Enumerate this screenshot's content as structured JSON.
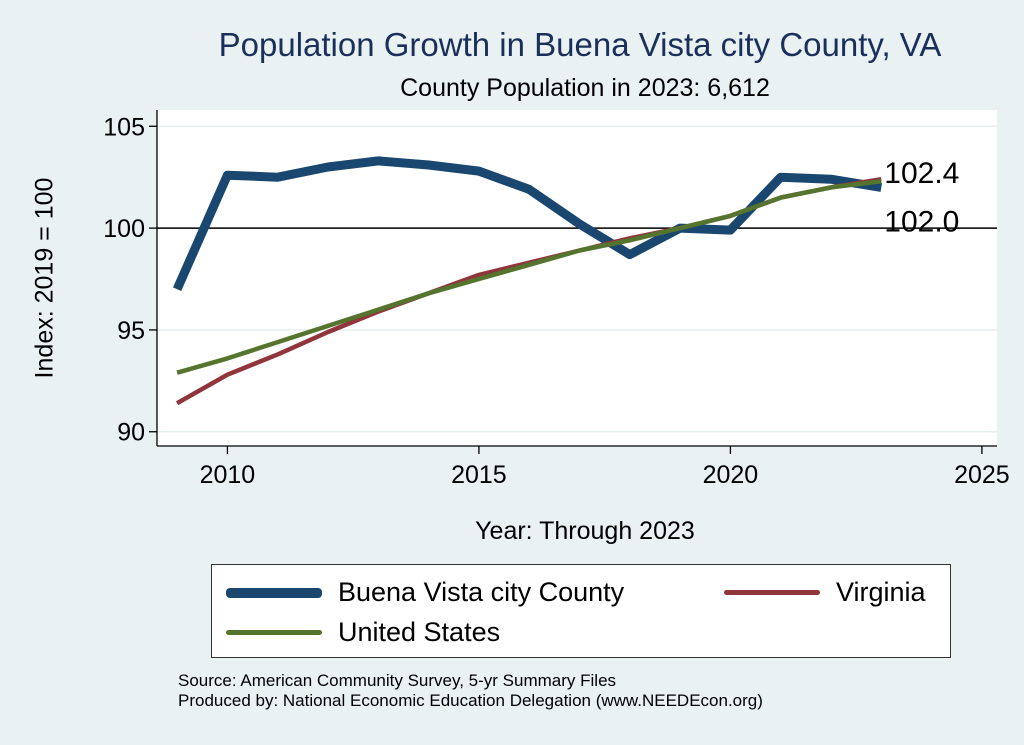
{
  "chart_data": {
    "type": "line",
    "title": "Population Growth in Buena Vista city County, VA",
    "subtitle": "County Population in 2023: 6,612",
    "xlabel": "Year: Through 2023",
    "ylabel": "Index: 2019 = 100",
    "xlim": [
      2008.6,
      2025.3
    ],
    "ylim": [
      89.3,
      105.8
    ],
    "xticks": [
      2010,
      2015,
      2020,
      2025
    ],
    "yticks": [
      90,
      95,
      100,
      105
    ],
    "reference_line": 100,
    "end_labels": [
      "102.4",
      "102.0"
    ],
    "legend_position": "bottom",
    "x": [
      2009,
      2010,
      2011,
      2012,
      2013,
      2014,
      2015,
      2016,
      2017,
      2018,
      2019,
      2020,
      2021,
      2022,
      2023
    ],
    "series": [
      {
        "name": "Buena Vista city  County",
        "color": "#1a476f",
        "values": [
          97.0,
          102.6,
          102.5,
          103.0,
          103.3,
          103.1,
          102.8,
          101.9,
          100.2,
          98.7,
          100.0,
          99.9,
          102.5,
          102.4,
          102.0
        ]
      },
      {
        "name": "Virginia",
        "color": "#90353b",
        "values": [
          91.4,
          92.8,
          93.8,
          94.9,
          95.9,
          96.8,
          97.7,
          98.3,
          98.9,
          99.5,
          100.0,
          100.6,
          101.5,
          102.0,
          102.4
        ]
      },
      {
        "name": "United States",
        "color": "#55752f",
        "values": [
          92.9,
          93.6,
          94.4,
          95.2,
          96.0,
          96.8,
          97.5,
          98.2,
          98.9,
          99.4,
          100.0,
          100.6,
          101.5,
          102.0,
          102.3
        ]
      }
    ]
  },
  "source_lines": [
    "Source: American Community Survey, 5-yr Summary Files",
    "Produced by: National Economic Education Delegation (www.NEEDEcon.org)"
  ]
}
